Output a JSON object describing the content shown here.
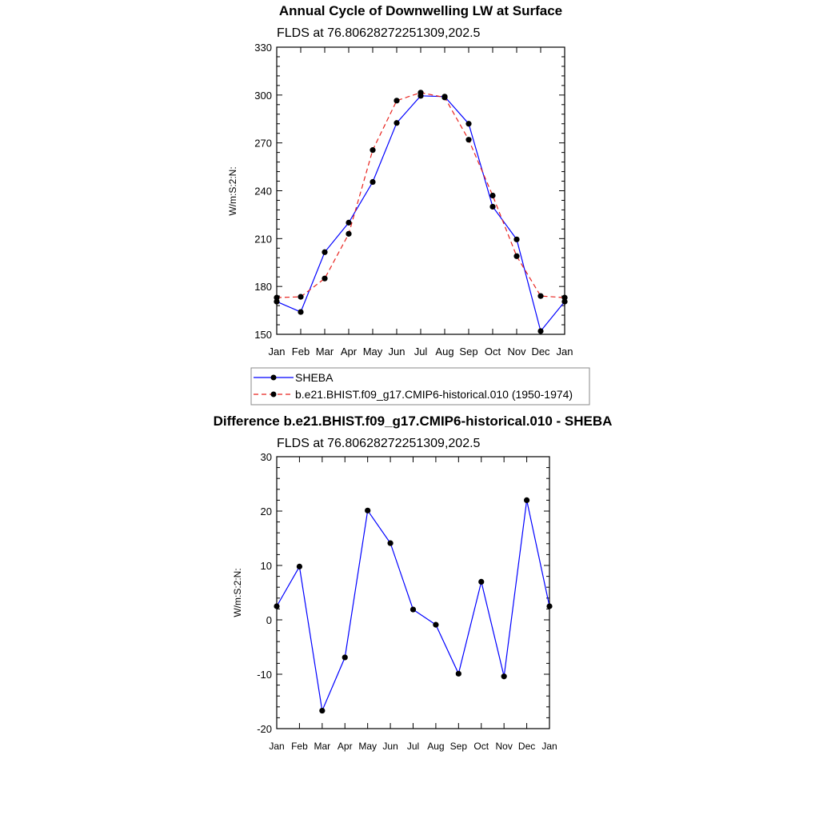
{
  "chart_data": [
    {
      "type": "line",
      "title": "Annual Cycle of Downwelling LW at Surface",
      "subtitle": "FLDS at 76.80628272251309,202.5",
      "ylabel": "W/m:S:2:N:",
      "xlabel": "",
      "categories": [
        "Jan",
        "Feb",
        "Mar",
        "Apr",
        "May",
        "Jun",
        "Jul",
        "Aug",
        "Sep",
        "Oct",
        "Nov",
        "Dec",
        "Jan"
      ],
      "ylim": [
        150,
        330
      ],
      "yticks": [
        150,
        180,
        210,
        240,
        270,
        300,
        330
      ],
      "grid": false,
      "legend_placement": "below",
      "series": [
        {
          "name": "SHEBA",
          "color": "#0000ff",
          "dash": "solid",
          "values": [
            170.5,
            164,
            201.5,
            220,
            245.5,
            282.5,
            299.5,
            299,
            282,
            230,
            209.5,
            152,
            170.5
          ]
        },
        {
          "name": "b.e21.BHIST.f09_g17.CMIP6-historical.010 (1950-1974)",
          "color": "#e8231e",
          "dash": "dashed",
          "values": [
            173,
            173.5,
            185,
            213,
            265.5,
            296.5,
            301.5,
            298.5,
            272,
            237,
            199,
            174,
            173
          ]
        }
      ]
    },
    {
      "type": "line",
      "title": "Difference b.e21.BHIST.f09_g17.CMIP6-historical.010 - SHEBA",
      "subtitle": "FLDS at 76.80628272251309,202.5",
      "ylabel": "W/m:S:2:N:",
      "xlabel": "",
      "categories": [
        "Jan",
        "Feb",
        "Mar",
        "Apr",
        "May",
        "Jun",
        "Jul",
        "Aug",
        "Sep",
        "Oct",
        "Nov",
        "Dec",
        "Jan"
      ],
      "ylim": [
        -20,
        30
      ],
      "yticks": [
        -20,
        -10,
        0,
        10,
        20,
        30
      ],
      "grid": false,
      "series": [
        {
          "color": "#0000ff",
          "dash": "solid",
          "values": [
            2.5,
            9.8,
            -16.7,
            -6.9,
            20.1,
            14.1,
            1.9,
            -0.9,
            -9.9,
            7.0,
            -10.4,
            22.0,
            2.5
          ]
        }
      ]
    }
  ]
}
